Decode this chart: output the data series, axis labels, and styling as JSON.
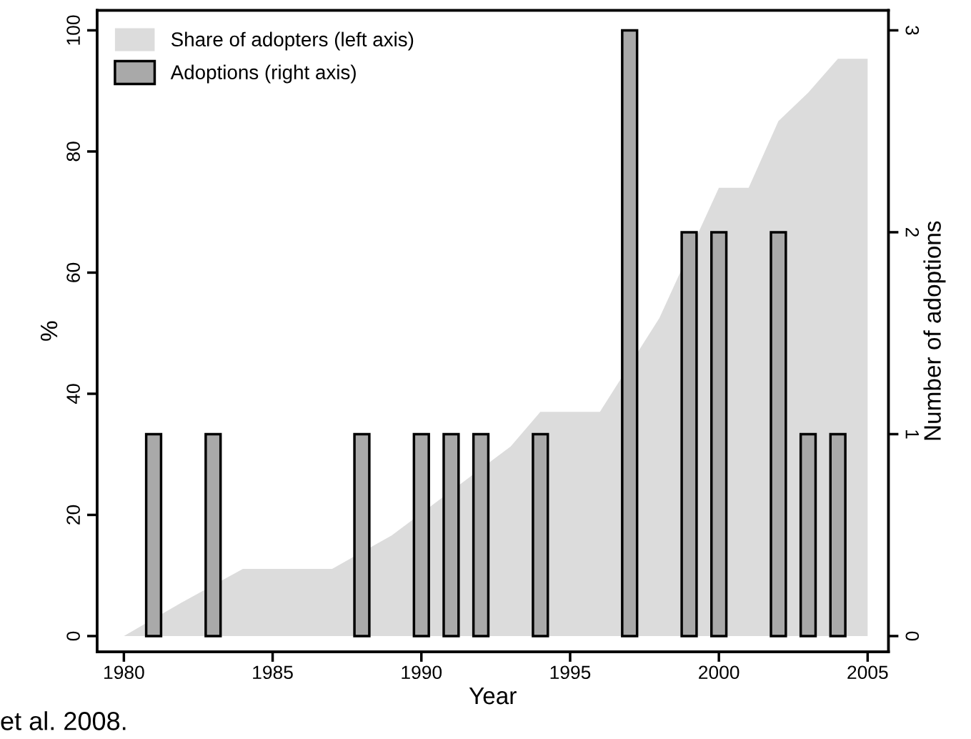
{
  "chart_data": {
    "type": "area",
    "xlabel": "Year",
    "ylabel": "%",
    "y2label": "Number of adoptions",
    "series": [
      {
        "name": "Share of adopters (left axis)",
        "color": "#dcdcdc",
        "x": [
          1980,
          1981,
          1982,
          1983,
          1984,
          1985,
          1986,
          1987,
          1988,
          1989,
          1990,
          1991,
          1992,
          1993,
          1994,
          1995,
          1996,
          1997,
          1998,
          1999,
          2000,
          2001,
          2002,
          2003,
          2004,
          2005
        ],
        "values": [
          0,
          null,
          5.7,
          null,
          11.1,
          11.1,
          11.1,
          11.1,
          null,
          16.6,
          null,
          null,
          null,
          31.3,
          37,
          37,
          37,
          null,
          52.5,
          null,
          74,
          74,
          85,
          89.7,
          95.3,
          95.3
        ]
      },
      {
        "name": "Adoptions (right axis)",
        "type": "bar",
        "axis": "y2",
        "color": "#a9a9a9",
        "x": [
          1981,
          1983,
          1988,
          1990,
          1991,
          1992,
          1994,
          1997,
          1999,
          2000,
          2002,
          2003,
          2004
        ],
        "values": [
          1,
          1,
          1,
          1,
          1,
          1,
          1,
          3,
          2,
          2,
          2,
          1,
          1
        ]
      }
    ],
    "xlim": [
      1979.1,
      2005.7
    ],
    "xticks": [
      1980,
      1985,
      1990,
      1995,
      2000,
      2005
    ],
    "ylim": [
      -2.6,
      103.3
    ],
    "yticks": [
      0,
      20,
      40,
      60,
      80,
      100
    ],
    "y2lim": [
      -0.078,
      3.099
    ],
    "y2ticks": [
      0,
      1,
      2,
      3
    ],
    "legend": "top left",
    "grid": false,
    "annotations": [
      "et al. 2008."
    ]
  }
}
